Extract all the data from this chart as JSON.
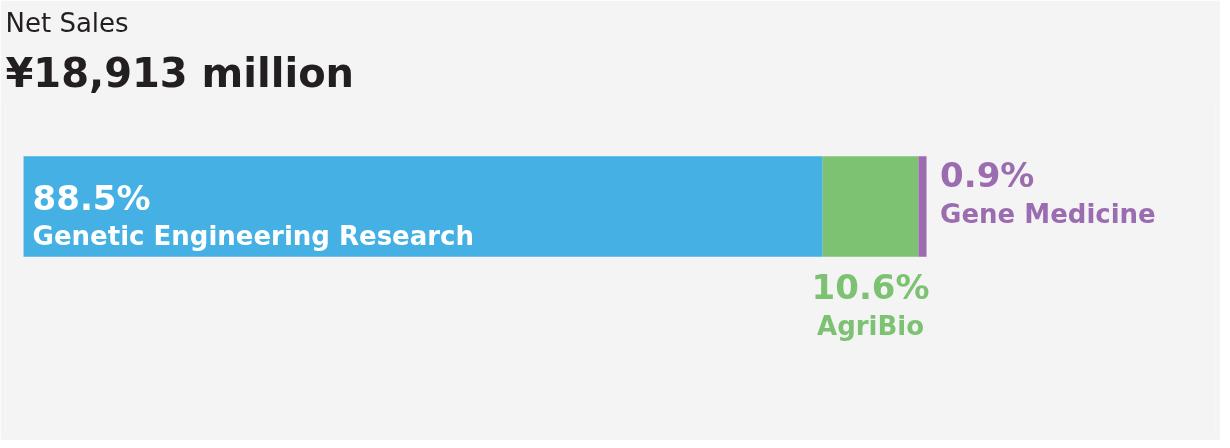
{
  "chart_data": {
    "type": "bar",
    "title": "Net Sales",
    "subtitle": "¥18,913 million",
    "orientation": "horizontal",
    "stacked": true,
    "categories": [
      null
    ],
    "tick_labels": false,
    "grid": false,
    "series": [
      {
        "name": "Genetic Engineering Research",
        "color": "#45b0e3",
        "values": [
          88.5
        ],
        "value_labels": [
          "88.5%"
        ]
      },
      {
        "name": "AgriBio",
        "color": "#7dc273",
        "values": [
          10.6
        ],
        "value_labels": [
          "10.6%"
        ]
      },
      {
        "name": "Gene Medicine",
        "color": "#9b6db0",
        "values": [
          0.9
        ],
        "value_labels": [
          "0.9%"
        ]
      }
    ]
  }
}
